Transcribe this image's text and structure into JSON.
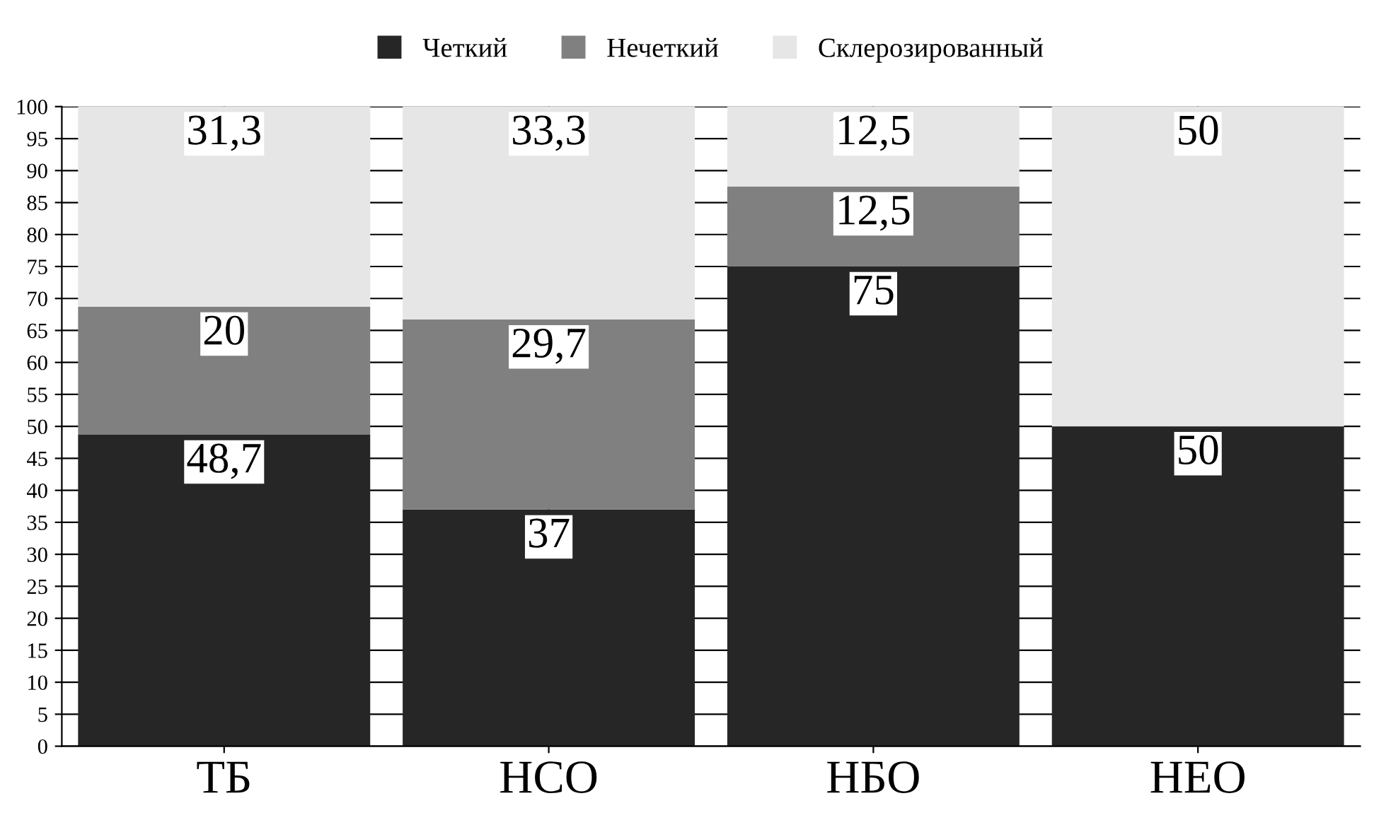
{
  "chart_data": {
    "type": "bar",
    "stacked": true,
    "categories": [
      "ТБ",
      "НСО",
      "НБО",
      "НЕО"
    ],
    "series": [
      {
        "name": "Четкий",
        "color": "#262626",
        "values": [
          48.7,
          37,
          75,
          50
        ],
        "value_labels": [
          "48,7",
          "37",
          "75",
          "50"
        ]
      },
      {
        "name": "Нечеткий",
        "color": "#808080",
        "values": [
          20,
          29.7,
          12.5,
          0
        ],
        "value_labels": [
          "20",
          "29,7",
          "12,5",
          null
        ]
      },
      {
        "name": "Склерозированный",
        "color": "#e6e6e6",
        "values": [
          31.3,
          33.3,
          12.5,
          50
        ],
        "value_labels": [
          "31,3",
          "33,3",
          "12,5",
          "50"
        ]
      }
    ],
    "ylim": [
      0,
      100
    ],
    "yticks": [
      0,
      5,
      10,
      15,
      20,
      25,
      30,
      35,
      40,
      45,
      50,
      55,
      60,
      65,
      70,
      75,
      80,
      85,
      90,
      95,
      100
    ],
    "grid": true,
    "legend": "top"
  }
}
